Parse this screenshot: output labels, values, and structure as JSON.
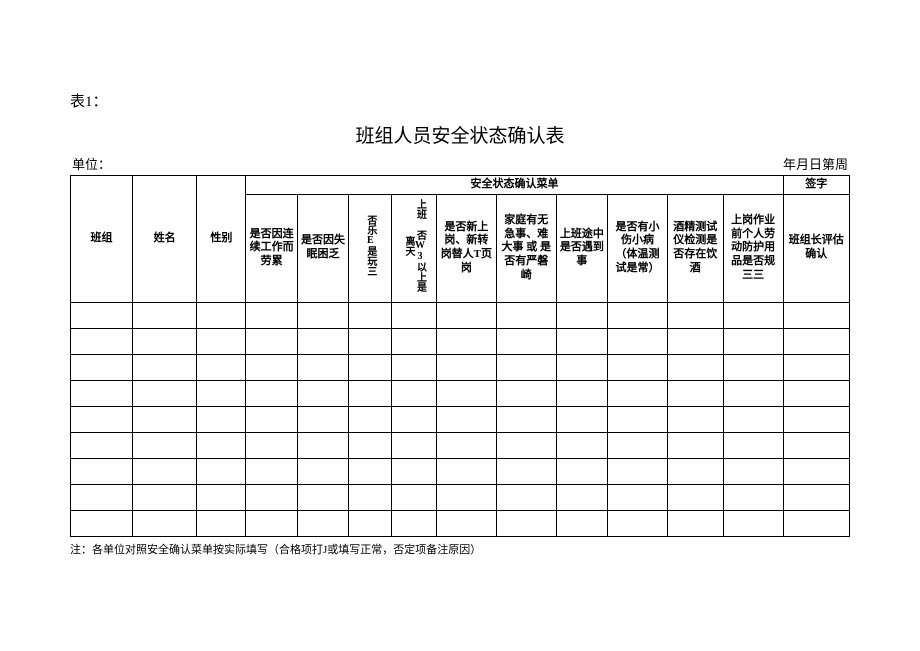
{
  "label_top": "表1：",
  "title": "班组人员安全状态确认表",
  "unit_label": "单位：",
  "date_label": "年月日第周",
  "header_group_menu": "安全状态确认菜单",
  "header_group_sign": "签字",
  "columns": {
    "team": "班组",
    "name": "姓名",
    "sex": "性别",
    "m1": "是否因连续工作而劳累",
    "m2": "是否因失眠困乏",
    "m3": "否乐E是玩三",
    "m4": "上班 否W3以上是离天",
    "m5": "是否新上岗、新转岗替人T页岗",
    "m6": "家庭有无急事、难大事 或 是否有严磐崎",
    "m7": "上班途中是否遇到事",
    "m8": "是否有小伤小病（体温测试是常）",
    "m9": "酒精测试仪检测是否存在饮酒",
    "m10": "上岗作业前个人劳动防护用品是否规三三",
    "sign": "班组长评估确认"
  },
  "row_count": 9,
  "note": "注：各单位对照安全确认菜单按实际填写（合格项打J或填写正常，否定项备注原因）",
  "colors": {
    "bg": "#ffffff",
    "text": "#000000",
    "border": "#000000"
  }
}
